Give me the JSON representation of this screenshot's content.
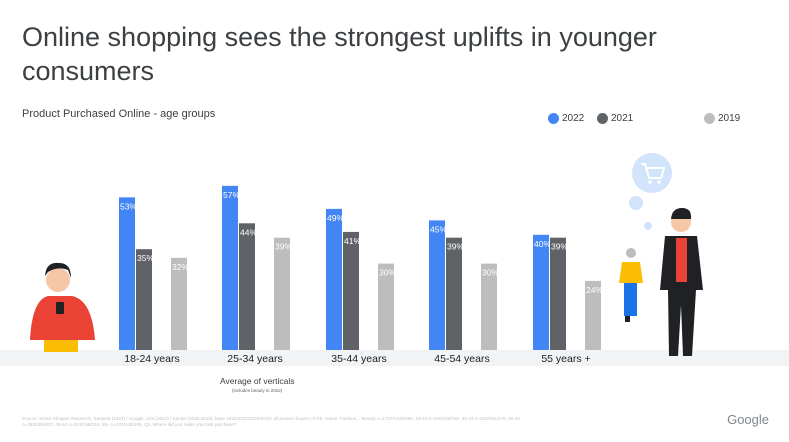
{
  "title": "Online shopping sees the strongest uplifts in younger consumers",
  "subtitle": "Product Purchased Online - age groups",
  "avg_label": "Average of verticals",
  "avg_note": "(includes beauty in 2022)",
  "source": "Source: Smart Shopper Research, Savanta (2022) / Google, Cint (2021) / Kantar (2020-2019), base 2022/2021/2020/2019; all product buyers of CE, Home, Fashion... Beauty n=1737/1445/360, 18-24 n=150/136/150, 25-34 n=293/261/278, 35-44 n=363/399/307, 45-54 n=324/199/214, 55+ n=420/145/199, Q1: Where did you make your last purchase?",
  "logo": "Google",
  "colors": {
    "2022": "#4285f4",
    "2021": "#5f6368",
    "2019": "#bdbdbd"
  },
  "chart_data": {
    "type": "bar",
    "title": "Online shopping sees the strongest uplifts in younger consumers",
    "subtitle": "Product Purchased Online - age groups",
    "categories": [
      "18-24 years",
      "25-34 years",
      "35-44 years",
      "45-54 years",
      "55 years +"
    ],
    "series": [
      {
        "name": "2022",
        "values": [
          53,
          57,
          49,
          45,
          40
        ],
        "labels": [
          "53%",
          "57%",
          "49%",
          "45%",
          "40%"
        ]
      },
      {
        "name": "2021",
        "values": [
          35,
          44,
          41,
          39,
          39
        ],
        "labels": [
          "35%",
          "44%",
          "41%",
          "39%",
          "39%"
        ]
      },
      {
        "name": "2019",
        "values": [
          32,
          39,
          30,
          30,
          24
        ],
        "labels": [
          "32%",
          "39%",
          "30%",
          "30%",
          "24%"
        ]
      }
    ],
    "legend_position": "top-right",
    "grid": false,
    "ylim": [
      0,
      60
    ]
  }
}
